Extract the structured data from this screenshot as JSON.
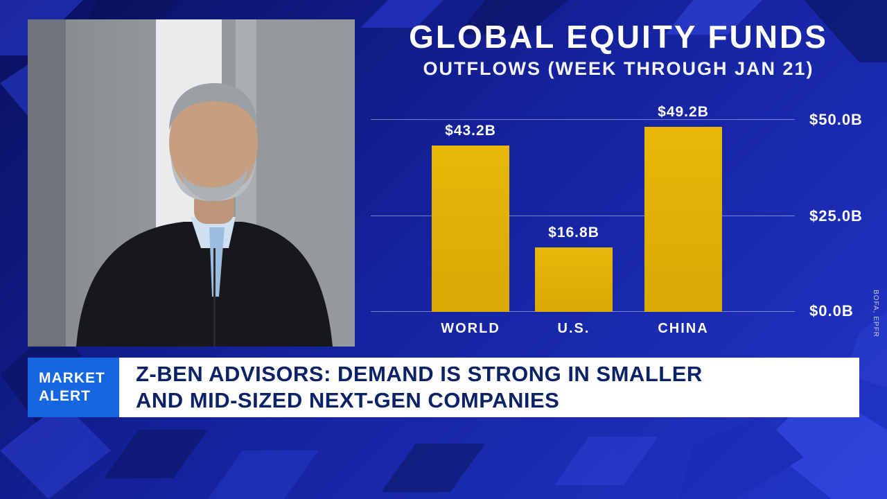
{
  "chart": {
    "title": "GLOBAL EQUITY FUNDS",
    "subtitle": "OUTFLOWS (WEEK THROUGH JAN 21)",
    "source": "BOFA, EPFR"
  },
  "chart_data": {
    "type": "bar",
    "title": "GLOBAL EQUITY FUNDS",
    "subtitle": "OUTFLOWS (WEEK THROUGH JAN 21)",
    "categories": [
      "WORLD",
      "U.S.",
      "CHINA"
    ],
    "values": [
      43.2,
      16.8,
      49.2
    ],
    "value_labels": [
      "$43.2B",
      "$16.8B",
      "$49.2B"
    ],
    "ytick_labels": [
      "$50.0B",
      "$25.0B",
      "$0.0B"
    ],
    "ylim": [
      0,
      55
    ],
    "grid": "horizontal",
    "legend": false,
    "bar_color": "#E8B70A",
    "source": "BOFA, EPFR"
  },
  "banner": {
    "badge": {
      "line1": "MARKET",
      "line2": "ALERT"
    },
    "headline_line1": "Z-BEN ADVISORS: DEMAND IS STRONG IN SMALLER",
    "headline_line2": "AND MID-SIZED NEXT-GEN COMPANIES"
  },
  "colors": {
    "background_navy": "#14219A",
    "bar_gold": "#E8B70A",
    "badge_blue": "#1667DF",
    "headline_navy": "#0C2266"
  }
}
